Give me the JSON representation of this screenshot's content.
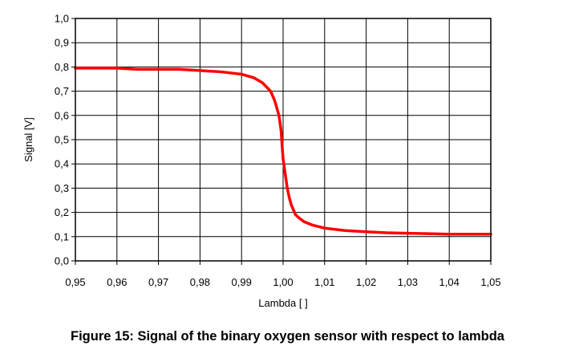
{
  "caption": "Figure 15: Signal of the binary oxygen sensor with respect to lambda",
  "chart_data": {
    "type": "line",
    "title": "",
    "xlabel": "Lambda [ ]",
    "ylabel": "Signal [V]",
    "xlim": [
      0.95,
      1.05
    ],
    "ylim": [
      0.0,
      1.0
    ],
    "x_ticks": [
      "0,95",
      "0,96",
      "0,97",
      "0,98",
      "0,99",
      "1,00",
      "1,01",
      "1,02",
      "1,03",
      "1,04",
      "1,05"
    ],
    "y_ticks": [
      "0,0",
      "0,1",
      "0,2",
      "0,3",
      "0,4",
      "0,5",
      "0,6",
      "0,7",
      "0,8",
      "0,9",
      "1,0"
    ],
    "grid": true,
    "legend": "none",
    "series": [
      {
        "color": "#ff0000",
        "x": [
          0.95,
          0.955,
          0.96,
          0.965,
          0.97,
          0.975,
          0.98,
          0.985,
          0.99,
          0.993,
          0.995,
          0.997,
          0.998,
          0.999,
          0.9995,
          1.0,
          1.0005,
          1.001,
          1.0015,
          1.002,
          1.003,
          1.004,
          1.005,
          1.007,
          1.01,
          1.015,
          1.02,
          1.025,
          1.03,
          1.035,
          1.04,
          1.045,
          1.05
        ],
        "y": [
          0.795,
          0.795,
          0.795,
          0.79,
          0.79,
          0.79,
          0.785,
          0.78,
          0.77,
          0.755,
          0.735,
          0.7,
          0.66,
          0.6,
          0.54,
          0.42,
          0.36,
          0.3,
          0.26,
          0.23,
          0.19,
          0.175,
          0.162,
          0.148,
          0.135,
          0.125,
          0.12,
          0.116,
          0.114,
          0.112,
          0.11,
          0.11,
          0.11
        ]
      }
    ]
  }
}
